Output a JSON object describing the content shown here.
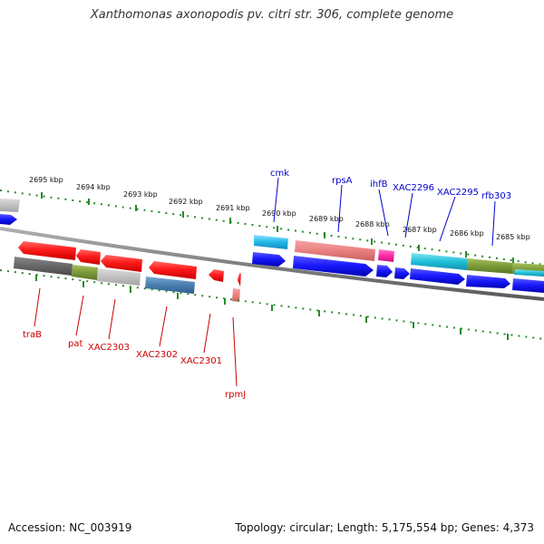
{
  "title": "Xanthomonas axonopodis pv. citri str. 306, complete genome",
  "footer": {
    "accession": "Accession: NC_003919",
    "topology": "Topology: circular; Length: 5,175,554 bp; Genes: 4,373"
  },
  "colors": {
    "forward_label": "#0000cc",
    "reverse_label": "#cc0000",
    "tick": "#2a8a2a",
    "backbone": "#808080"
  },
  "position_labels": [
    "2695 kbp",
    "2694 kbp",
    "2693 kbp",
    "2692 kbp",
    "2691 kbp",
    "2690 kbp",
    "2689 kbp",
    "2688 kbp",
    "2687 kbp",
    "2686 kbp",
    "2685 kbp"
  ],
  "forward_gene_labels": [
    "cmk",
    "rpsA",
    "ihfB",
    "XAC2296",
    "XAC2295",
    "rfb303"
  ],
  "reverse_gene_labels": [
    "traB",
    "pat",
    "XAC2303",
    "XAC2302",
    "XAC2301",
    "rpmJ"
  ]
}
